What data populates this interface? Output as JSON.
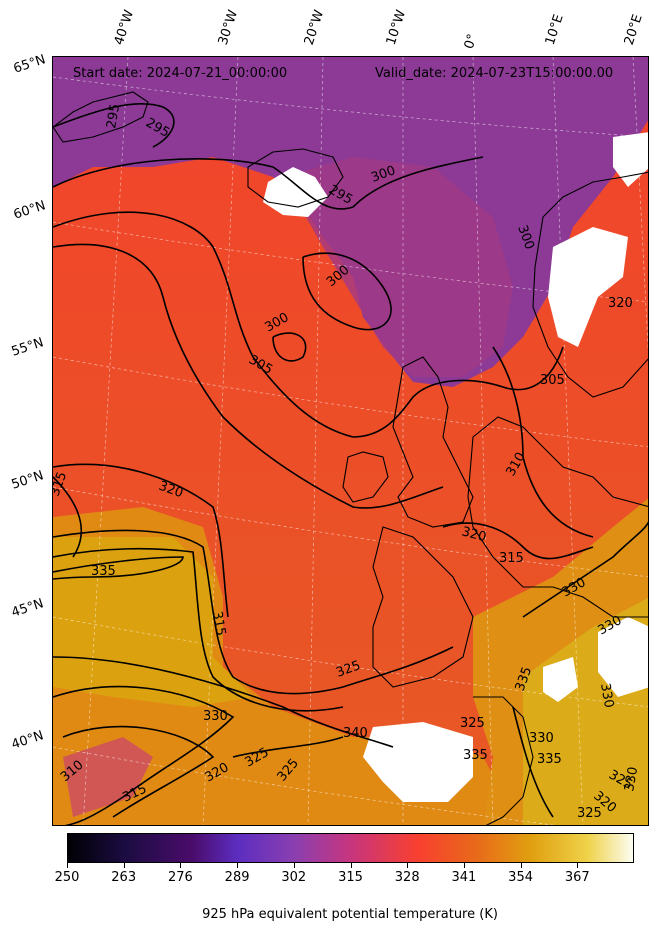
{
  "header": {
    "start_date": "Start date: 2024-07-21_00:00:00",
    "valid_date": "Valid_date: 2024-07-23T15:00:00.00"
  },
  "map": {
    "field": "925 hPa equivalent potential temperature",
    "colormap": "plasma/CMRmap-like (dark purple to yellow-white)",
    "longitude_labels": [
      "40°W",
      "30°W",
      "20°W",
      "10°W",
      "0°",
      "10°E",
      "20°E"
    ],
    "latitude_labels": [
      "65°N",
      "60°N",
      "55°N",
      "50°N",
      "45°N",
      "40°N"
    ],
    "contour_levels": [
      "295",
      "295",
      "295",
      "300",
      "300",
      "300",
      "300",
      "305",
      "305",
      "310",
      "310",
      "310",
      "315",
      "315",
      "315",
      "315",
      "320",
      "320",
      "320",
      "325",
      "325",
      "325",
      "325",
      "330",
      "330",
      "330",
      "335",
      "335",
      "335",
      "340",
      "340"
    ],
    "colors": {
      "purple": "#8a3a9a",
      "red": "#f2432c",
      "orange": "#e47a18",
      "yellow": "#dfa010",
      "missing": "#ffffff"
    }
  },
  "colorbar": {
    "ticks": [
      "250",
      "263",
      "276",
      "289",
      "302",
      "315",
      "328",
      "341",
      "354",
      "367"
    ],
    "label": "925 hPa equivalent potential temperature (K)"
  }
}
